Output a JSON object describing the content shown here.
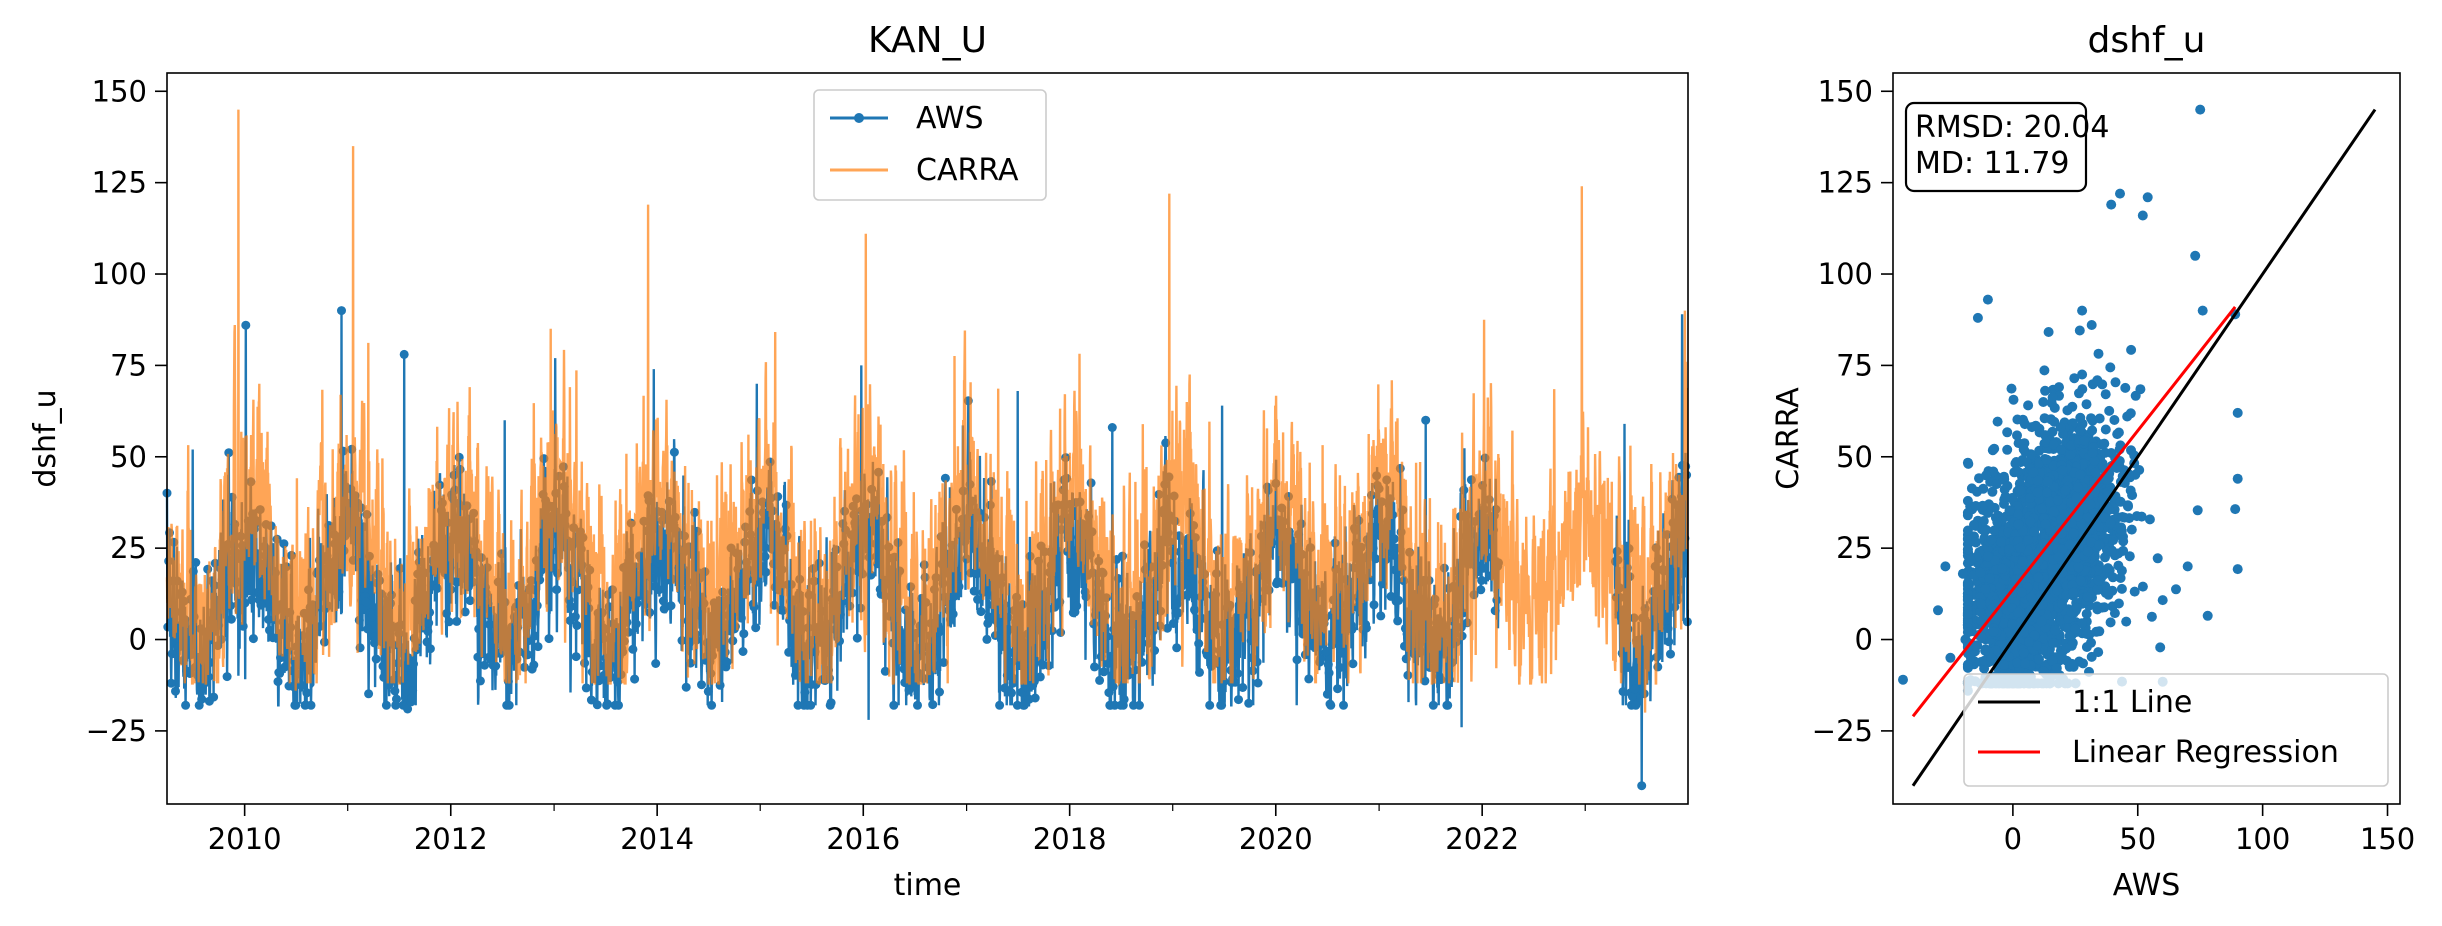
{
  "chart_data": [
    {
      "type": "line",
      "title": "KAN_U",
      "xlabel": "time",
      "ylabel": "dshf_u",
      "xlim": [
        "2009-04-01",
        "2023-12-31"
      ],
      "ylim": [
        -45,
        155
      ],
      "xticks": [
        "2010",
        "2012",
        "2014",
        "2016",
        "2018",
        "2020",
        "2022"
      ],
      "yticks": [
        -25,
        0,
        25,
        50,
        75,
        100,
        125,
        150
      ],
      "grid": false,
      "legend": {
        "placement": "upper center",
        "entries": [
          "AWS",
          "CARRA"
        ]
      },
      "series": [
        {
          "name": "AWS",
          "color": "#1f77b4",
          "marker": "circle",
          "description_of_pattern": "daily values, seasonal cycle peaking in summer",
          "peaks": [
            [
              "2009-07-01",
              52
            ],
            [
              "2010-01-05",
              86
            ],
            [
              "2010-12-10",
              90
            ],
            [
              "2011-07-20",
              78
            ],
            [
              "2012-07-10",
              60
            ],
            [
              "2013-01-05",
              77
            ],
            [
              "2013-12-20",
              74
            ],
            [
              "2014-12-20",
              70
            ],
            [
              "2015-12-25",
              75
            ],
            [
              "2017-07-01",
              68
            ],
            [
              "2018-06-01",
              58
            ],
            [
              "2019-06-25",
              64
            ],
            [
              "2021-06-15",
              60
            ],
            [
              "2023-05-20",
              59
            ],
            [
              "2023-12-10",
              89
            ]
          ],
          "troughs": [
            [
              "2011-08-01",
              -19
            ],
            [
              "2015-10-01",
              -14
            ],
            [
              "2016-01-20",
              -22
            ],
            [
              "2017-09-01",
              -16
            ],
            [
              "2021-10-20",
              -24
            ],
            [
              "2023-07-20",
              -40
            ]
          ]
        },
        {
          "name": "CARRA",
          "color": "#ff7f0e",
          "alpha": 0.7,
          "description_of_pattern": "daily values, seasonal cycle with larger winter peaks, continues through 2022-2023 where AWS has a gap",
          "peaks": [
            [
              "2009-12-10",
              145
            ],
            [
              "2011-01-20",
              135
            ],
            [
              "2012-12-20",
              85
            ],
            [
              "2013-11-30",
              119
            ],
            [
              "2016-01-10",
              111
            ],
            [
              "2018-12-20",
              122
            ],
            [
              "2022-12-20",
              124
            ],
            [
              "2023-12-20",
              90
            ]
          ],
          "troughs": [
            [
              "2010-07-01",
              -14
            ],
            [
              "2015-07-01",
              -10
            ],
            [
              "2018-07-10",
              -12
            ],
            [
              "2023-08-01",
              -20
            ]
          ]
        }
      ]
    },
    {
      "type": "scatter",
      "title": "dshf_u",
      "xlabel": "AWS",
      "ylabel": "CARRA",
      "xlim": [
        -48,
        155
      ],
      "ylim": [
        -45,
        155
      ],
      "xticks": [
        0,
        50,
        100,
        150
      ],
      "yticks": [
        -25,
        0,
        25,
        50,
        75,
        100,
        125,
        150
      ],
      "grid": false,
      "legend": {
        "placement": "lower right",
        "entries": [
          "1:1 Line",
          "Linear Regression"
        ]
      },
      "stats": {
        "rmsd_label": "RMSD: 20.04",
        "md_label": "MD: 11.79"
      },
      "series": [
        {
          "name": "points",
          "color": "#1f77b4",
          "description": "dense cloud of daily AWS vs CARRA pairs concentrated around (0..60, 0..75)"
        },
        {
          "name": "1:1 Line",
          "color": "#000000",
          "x": [
            -40,
            145
          ],
          "y": [
            -40,
            145
          ]
        },
        {
          "name": "Linear Regression",
          "color": "#ff0000",
          "x": [
            -40,
            89
          ],
          "y": [
            -21,
            91
          ]
        }
      ],
      "outlier_points": [
        [
          75,
          145
        ],
        [
          54,
          121
        ],
        [
          52,
          116
        ],
        [
          73,
          105
        ],
        [
          -10,
          93
        ],
        [
          -14,
          88
        ],
        [
          76,
          90
        ],
        [
          89,
          89
        ],
        [
          90,
          62
        ],
        [
          90,
          44
        ],
        [
          70,
          20
        ],
        [
          -27,
          20
        ],
        [
          -20,
          18
        ],
        [
          -30,
          8
        ],
        [
          -44,
          -11
        ],
        [
          -25,
          -5
        ]
      ]
    }
  ]
}
